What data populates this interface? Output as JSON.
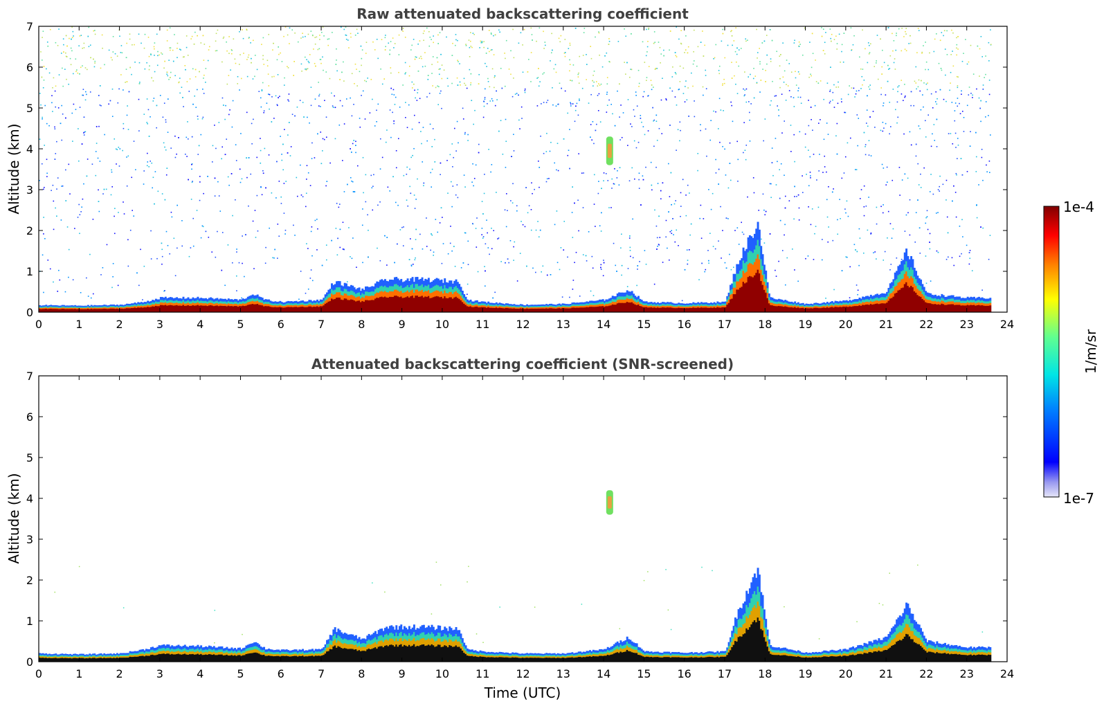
{
  "figure": {
    "colorbar": {
      "label": "1/m/sr",
      "max_label": "1e-4",
      "min_label": "1e-7",
      "range": [
        1e-07,
        0.0001
      ],
      "scale": "log",
      "colormap": "jet"
    },
    "xlabel": "Time (UTC)"
  },
  "chart_data": [
    {
      "type": "heatmap",
      "title": "Raw attenuated backscattering coefficient",
      "xlabel": "",
      "ylabel": "Altitude (km)",
      "xlim": [
        0,
        24
      ],
      "ylim": [
        0,
        7
      ],
      "x_ticks": [
        0,
        1,
        2,
        3,
        4,
        5,
        6,
        7,
        8,
        9,
        10,
        11,
        12,
        13,
        14,
        15,
        16,
        17,
        18,
        19,
        20,
        21,
        22,
        23,
        24
      ],
      "y_ticks": [
        0,
        1,
        2,
        3,
        4,
        5,
        6,
        7
      ],
      "data_end_time": 23.6,
      "boundary_layer_top_km": [
        [
          0,
          0.17
        ],
        [
          1,
          0.16
        ],
        [
          2,
          0.18
        ],
        [
          2.6,
          0.25
        ],
        [
          3,
          0.35
        ],
        [
          4,
          0.35
        ],
        [
          5,
          0.3
        ],
        [
          5.3,
          0.45
        ],
        [
          5.6,
          0.3
        ],
        [
          6,
          0.25
        ],
        [
          7,
          0.3
        ],
        [
          7.3,
          0.75
        ],
        [
          8,
          0.55
        ],
        [
          8.6,
          0.8
        ],
        [
          9.5,
          0.8
        ],
        [
          10.4,
          0.75
        ],
        [
          10.6,
          0.3
        ],
        [
          11,
          0.25
        ],
        [
          12,
          0.18
        ],
        [
          13,
          0.2
        ],
        [
          14,
          0.3
        ],
        [
          14.6,
          0.55
        ],
        [
          15,
          0.25
        ],
        [
          16,
          0.22
        ],
        [
          17,
          0.25
        ],
        [
          17.3,
          1.2
        ],
        [
          17.8,
          2.2
        ],
        [
          18.1,
          0.35
        ],
        [
          19,
          0.2
        ],
        [
          20,
          0.28
        ],
        [
          21,
          0.5
        ],
        [
          21.5,
          1.5
        ],
        [
          22,
          0.45
        ],
        [
          23,
          0.35
        ],
        [
          23.6,
          0.35
        ]
      ],
      "aloft_feature": {
        "time": 14.15,
        "altitude_km": [
          3.6,
          4.3
        ]
      },
      "noise_background": "scattered noisy returns across all altitudes, denser near 1–2 km and above 5 km"
    },
    {
      "type": "heatmap",
      "title": "Attenuated backscattering coefficient (SNR-screened)",
      "xlabel": "Time (UTC)",
      "ylabel": "Altitude (km)",
      "xlim": [
        0,
        24
      ],
      "ylim": [
        0,
        7
      ],
      "x_ticks": [
        0,
        1,
        2,
        3,
        4,
        5,
        6,
        7,
        8,
        9,
        10,
        11,
        12,
        13,
        14,
        15,
        16,
        17,
        18,
        19,
        20,
        21,
        22,
        23,
        24
      ],
      "y_ticks": [
        0,
        1,
        2,
        3,
        4,
        5,
        6,
        7
      ],
      "data_end_time": 23.6,
      "boundary_layer_top_km": [
        [
          0,
          0.2
        ],
        [
          1,
          0.18
        ],
        [
          2,
          0.2
        ],
        [
          2.6,
          0.3
        ],
        [
          3,
          0.4
        ],
        [
          4,
          0.38
        ],
        [
          5,
          0.32
        ],
        [
          5.3,
          0.5
        ],
        [
          5.6,
          0.32
        ],
        [
          6,
          0.28
        ],
        [
          7,
          0.3
        ],
        [
          7.3,
          0.8
        ],
        [
          8,
          0.55
        ],
        [
          8.6,
          0.85
        ],
        [
          9.5,
          0.85
        ],
        [
          10.4,
          0.8
        ],
        [
          10.6,
          0.3
        ],
        [
          11,
          0.25
        ],
        [
          12,
          0.2
        ],
        [
          13,
          0.2
        ],
        [
          14,
          0.3
        ],
        [
          14.6,
          0.6
        ],
        [
          15,
          0.25
        ],
        [
          16,
          0.22
        ],
        [
          17,
          0.25
        ],
        [
          17.3,
          1.2
        ],
        [
          17.8,
          2.3
        ],
        [
          18.1,
          0.4
        ],
        [
          19,
          0.22
        ],
        [
          20,
          0.3
        ],
        [
          21,
          0.6
        ],
        [
          21.5,
          1.4
        ],
        [
          22,
          0.5
        ],
        [
          23,
          0.35
        ],
        [
          23.6,
          0.35
        ]
      ],
      "aloft_feature": {
        "time": 14.15,
        "altitude_km": [
          3.6,
          4.2
        ]
      },
      "noise_background": "noise removed; only boundary layer and isolated features remain"
    }
  ]
}
